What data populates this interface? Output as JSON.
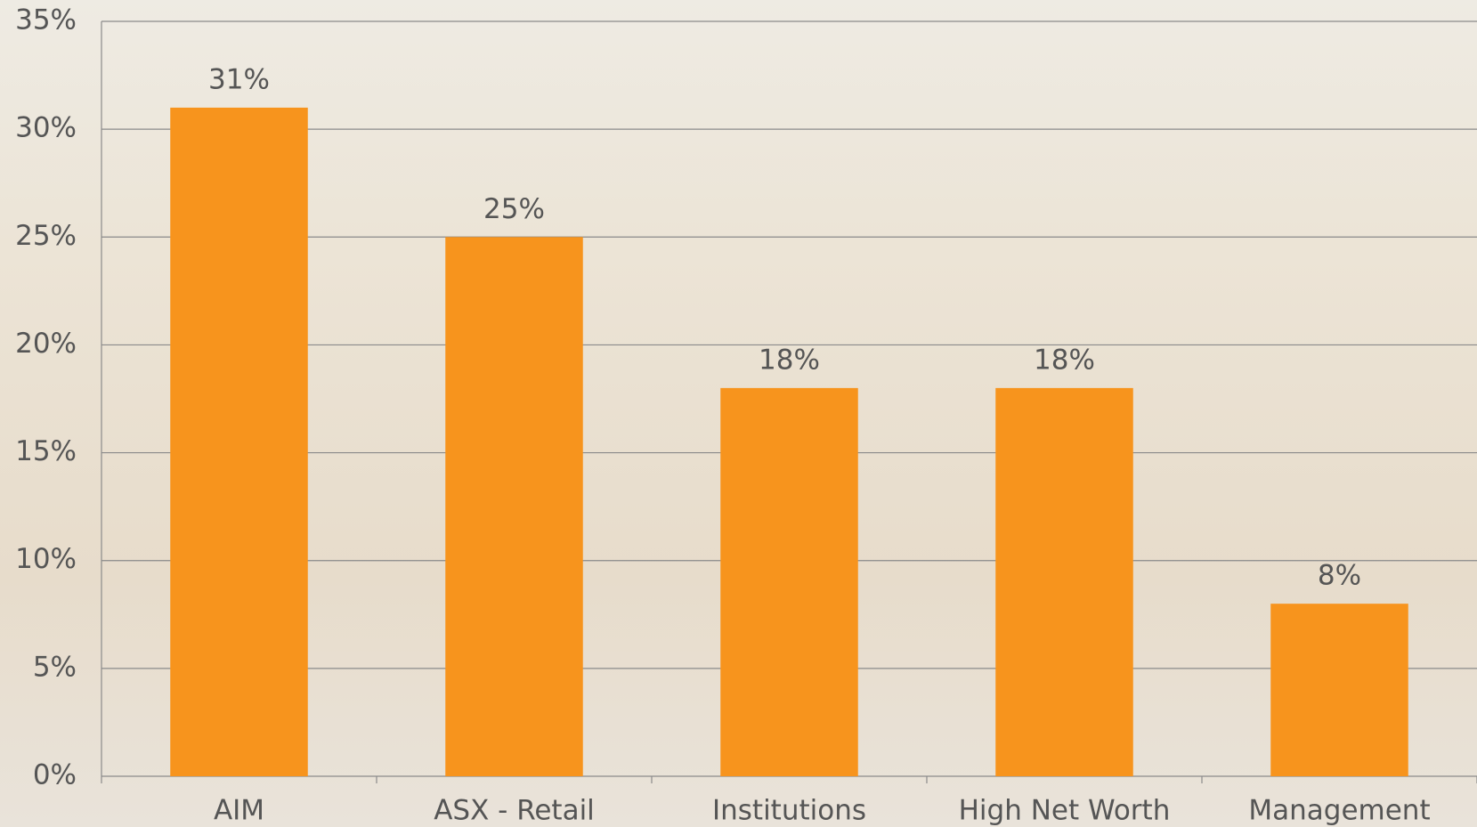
{
  "chart_data": {
    "type": "bar",
    "categories": [
      "AIM",
      "ASX - Retail",
      "Institutions",
      "High Net Worth",
      "Management"
    ],
    "values": [
      31,
      25,
      18,
      18,
      8
    ],
    "value_labels": [
      "31%",
      "25%",
      "18%",
      "18%",
      "8%"
    ],
    "color": "#f7941d",
    "ylim": [
      0,
      35
    ],
    "yticks": [
      {
        "value": 0,
        "label": "0%"
      },
      {
        "value": 5,
        "label": "5%"
      },
      {
        "value": 10,
        "label": "10%"
      },
      {
        "value": 15,
        "label": "15%"
      },
      {
        "value": 20,
        "label": "20%"
      },
      {
        "value": 25,
        "label": "25%"
      },
      {
        "value": 30,
        "label": "30%"
      },
      {
        "value": 35,
        "label": "35%"
      }
    ],
    "grid": true
  }
}
